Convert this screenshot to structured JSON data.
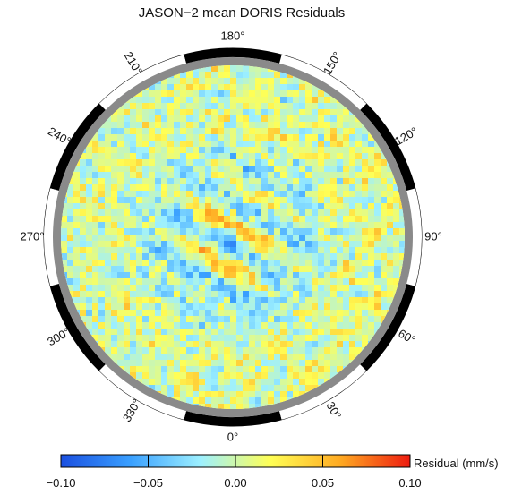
{
  "chart_data": {
    "type": "heatmap",
    "projection": "polar",
    "title": "JASON−2 mean DORIS Residuals",
    "angular_ticks": [
      {
        "deg": 0,
        "label": "0°"
      },
      {
        "deg": 30,
        "label": "30°"
      },
      {
        "deg": 60,
        "label": "60°"
      },
      {
        "deg": 90,
        "label": "90°"
      },
      {
        "deg": 120,
        "label": "120°"
      },
      {
        "deg": 150,
        "label": "150°"
      },
      {
        "deg": 180,
        "label": "180°"
      },
      {
        "deg": 210,
        "label": "210°"
      },
      {
        "deg": 240,
        "label": "240°"
      },
      {
        "deg": 270,
        "label": "270°"
      },
      {
        "deg": 300,
        "label": "300°"
      },
      {
        "deg": 330,
        "label": "330°"
      }
    ],
    "colorbar": {
      "label": "Residual (mm/s)",
      "range": [
        -0.1,
        0.1
      ],
      "ticks": [
        "−0.10",
        "−0.05",
        "0.00",
        "0.05",
        "0.10"
      ],
      "colors": [
        "#1a4fe0",
        "#3aa0ff",
        "#9df0ff",
        "#ffff55",
        "#ffaa22",
        "#ee1c10"
      ]
    },
    "pattern": {
      "outer_region": "mostly near-zero residuals (cyan/yellow) with scattered +/-0.03 mm/s",
      "central_region": "alternating bands of about -0.08 (blue) and +0.08 (red) mm/s"
    }
  }
}
